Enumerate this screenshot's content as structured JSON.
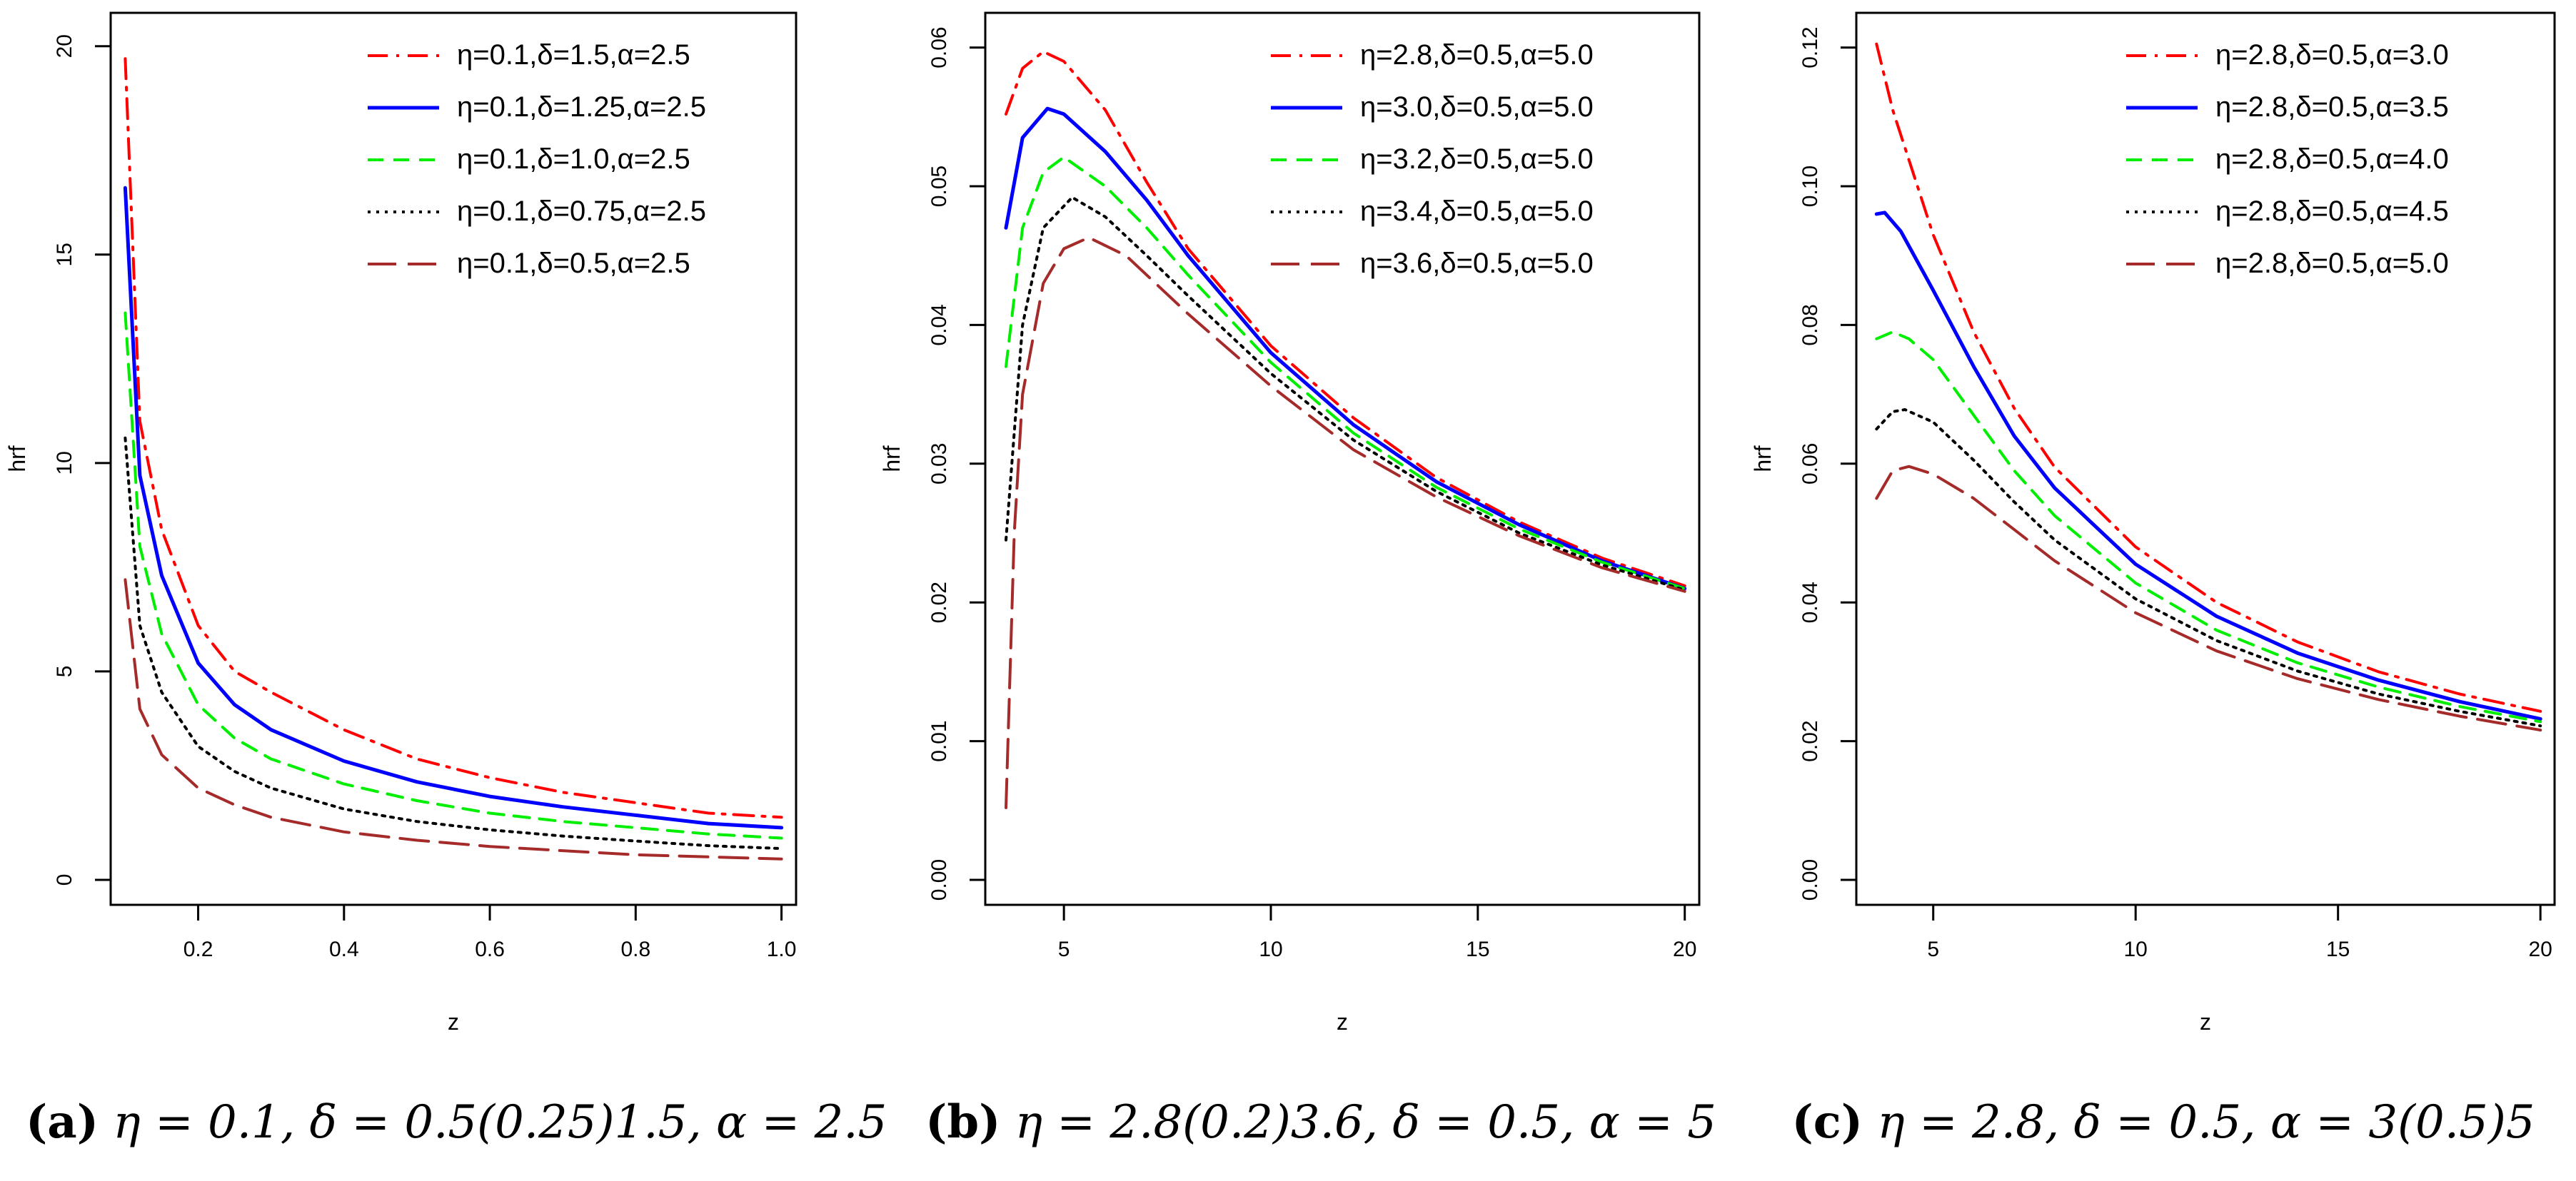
{
  "figure": {
    "captions": [
      {
        "label": "(a)",
        "text": "η = 0.1, δ = 0.5(0.25)1.5, α = 2.5"
      },
      {
        "label": "(b)",
        "text": "η = 2.8(0.2)3.6, δ = 0.5, α = 5"
      },
      {
        "label": "(c)",
        "text": "η = 2.8, δ = 0.5, α = 3(0.5)5"
      }
    ]
  },
  "styles": {
    "colors": [
      "#ff0000",
      "#0000ff",
      "#00ee00",
      "#000000",
      "#a52a2a"
    ],
    "dashes": [
      "28 12 4 12",
      "",
      "22 14",
      "4 8",
      "40 16"
    ]
  },
  "chart_data": [
    {
      "type": "line",
      "title": "",
      "xlabel": "z",
      "ylabel": "hrf",
      "xlim": [
        0.1,
        1.0
      ],
      "ylim": [
        0,
        20
      ],
      "xticks": [
        0.2,
        0.4,
        0.6,
        0.8,
        1.0
      ],
      "xtick_labels": [
        "0.2",
        "0.4",
        "0.6",
        "0.8",
        "1.0"
      ],
      "yticks": [
        0,
        5,
        10,
        15,
        20
      ],
      "ytick_labels": [
        "0",
        "5",
        "10",
        "15",
        "20"
      ],
      "legend_position": "top-right",
      "x": [
        0.1,
        0.12,
        0.15,
        0.2,
        0.25,
        0.3,
        0.4,
        0.5,
        0.6,
        0.7,
        0.8,
        0.9,
        1.0
      ],
      "series": [
        {
          "name": "η=0.1,δ=1.5,α=2.5",
          "values": [
            19.7,
            11.0,
            8.4,
            6.1,
            5.0,
            4.5,
            3.6,
            2.9,
            2.45,
            2.1,
            1.85,
            1.6,
            1.5
          ]
        },
        {
          "name": "η=0.1,δ=1.25,α=2.5",
          "values": [
            16.6,
            9.7,
            7.3,
            5.2,
            4.2,
            3.6,
            2.85,
            2.35,
            2.0,
            1.75,
            1.55,
            1.35,
            1.25
          ]
        },
        {
          "name": "η=0.1,δ=1.0,α=2.5",
          "values": [
            13.6,
            8.0,
            5.9,
            4.2,
            3.4,
            2.9,
            2.3,
            1.9,
            1.6,
            1.4,
            1.25,
            1.1,
            1.0
          ]
        },
        {
          "name": "η=0.1,δ=0.75,α=2.5",
          "values": [
            10.6,
            6.1,
            4.5,
            3.2,
            2.6,
            2.2,
            1.7,
            1.4,
            1.2,
            1.05,
            0.93,
            0.82,
            0.75
          ]
        },
        {
          "name": "η=0.1,δ=0.5,α=2.5",
          "values": [
            7.2,
            4.1,
            3.0,
            2.2,
            1.8,
            1.5,
            1.15,
            0.95,
            0.8,
            0.7,
            0.6,
            0.55,
            0.5
          ]
        }
      ]
    },
    {
      "type": "line",
      "title": "",
      "xlabel": "z",
      "ylabel": "hrf",
      "xlim": [
        3.6,
        20
      ],
      "ylim": [
        0,
        0.06
      ],
      "xticks": [
        5,
        10,
        15,
        20
      ],
      "xtick_labels": [
        "5",
        "10",
        "15",
        "20"
      ],
      "yticks": [
        0,
        0.01,
        0.02,
        0.03,
        0.04,
        0.05,
        0.06
      ],
      "ytick_labels": [
        "0.00",
        "0.01",
        "0.02",
        "0.03",
        "0.04",
        "0.05",
        "0.06"
      ],
      "legend_position": "top-right",
      "series": [
        {
          "name": "η=2.8,δ=0.5,α=5.0",
          "x": [
            3.6,
            4.0,
            4.5,
            5.0,
            6.0,
            7.0,
            8.0,
            10.0,
            12.0,
            14.0,
            16.0,
            18.0,
            20.0
          ],
          "values": [
            0.0552,
            0.0585,
            0.0597,
            0.059,
            0.0555,
            0.0503,
            0.0455,
            0.0385,
            0.0333,
            0.029,
            0.0258,
            0.0232,
            0.0212
          ]
        },
        {
          "name": "η=3.0,δ=0.5,α=5.0",
          "x": [
            3.6,
            4.0,
            4.6,
            5.0,
            6.0,
            7.0,
            8.0,
            10.0,
            12.0,
            14.0,
            16.0,
            18.0,
            20.0
          ],
          "values": [
            0.047,
            0.0535,
            0.0556,
            0.0552,
            0.0525,
            0.049,
            0.045,
            0.038,
            0.0328,
            0.0287,
            0.0256,
            0.023,
            0.021
          ]
        },
        {
          "name": "η=3.2,δ=0.5,α=5.0",
          "x": [
            3.6,
            4.0,
            4.5,
            5.0,
            6.0,
            7.0,
            8.0,
            10.0,
            12.0,
            14.0,
            16.0,
            18.0,
            20.0
          ],
          "values": [
            0.037,
            0.047,
            0.051,
            0.0521,
            0.05,
            0.047,
            0.0436,
            0.0373,
            0.0322,
            0.0283,
            0.0253,
            0.0229,
            0.021
          ]
        },
        {
          "name": "η=3.4,δ=0.5,α=5.0",
          "x": [
            3.6,
            4.0,
            4.5,
            5.2,
            6.0,
            7.0,
            8.0,
            10.0,
            12.0,
            14.0,
            16.0,
            18.0,
            20.0
          ],
          "values": [
            0.0245,
            0.04,
            0.047,
            0.0492,
            0.0478,
            0.045,
            0.0421,
            0.0365,
            0.0317,
            0.028,
            0.025,
            0.0227,
            0.0209
          ]
        },
        {
          "name": "η=3.6,δ=0.5,α=5.0",
          "x": [
            3.6,
            3.8,
            4.0,
            4.5,
            5.0,
            5.6,
            6.5,
            8.0,
            10.0,
            12.0,
            14.0,
            16.0,
            18.0,
            20.0
          ],
          "values": [
            0.0052,
            0.025,
            0.035,
            0.043,
            0.0455,
            0.0463,
            0.045,
            0.0408,
            0.0356,
            0.031,
            0.0276,
            0.0248,
            0.0225,
            0.0208
          ]
        }
      ]
    },
    {
      "type": "line",
      "title": "",
      "xlabel": "z",
      "ylabel": "hrf",
      "xlim": [
        3.6,
        20
      ],
      "ylim": [
        0,
        0.12
      ],
      "xticks": [
        5,
        10,
        15,
        20
      ],
      "xtick_labels": [
        "5",
        "10",
        "15",
        "20"
      ],
      "yticks": [
        0,
        0.02,
        0.04,
        0.06,
        0.08,
        0.1,
        0.12
      ],
      "ytick_labels": [
        "0.00",
        "0.02",
        "0.04",
        "0.06",
        "0.08",
        "0.10",
        "0.12"
      ],
      "legend_position": "top-right",
      "series": [
        {
          "name": "η=2.8,δ=0.5,α=3.0",
          "x": [
            3.6,
            4.0,
            5.0,
            6.0,
            7.0,
            8.0,
            10.0,
            12.0,
            14.0,
            16.0,
            18.0,
            20.0
          ],
          "values": [
            0.1205,
            0.111,
            0.093,
            0.079,
            0.068,
            0.0595,
            0.048,
            0.04,
            0.0343,
            0.03,
            0.0268,
            0.0243
          ]
        },
        {
          "name": "η=2.8,δ=0.5,α=3.5",
          "x": [
            3.6,
            3.8,
            4.2,
            5.0,
            6.0,
            7.0,
            8.0,
            10.0,
            12.0,
            14.0,
            16.0,
            18.0,
            20.0
          ],
          "values": [
            0.096,
            0.0962,
            0.0935,
            0.085,
            0.074,
            0.064,
            0.0565,
            0.0455,
            0.038,
            0.0327,
            0.0288,
            0.0257,
            0.0232
          ]
        },
        {
          "name": "η=2.8,δ=0.5,α=4.0",
          "x": [
            3.6,
            4.0,
            4.4,
            5.0,
            6.0,
            7.0,
            8.0,
            10.0,
            12.0,
            14.0,
            16.0,
            18.0,
            20.0
          ],
          "values": [
            0.078,
            0.079,
            0.078,
            0.075,
            0.067,
            0.059,
            0.0525,
            0.0428,
            0.036,
            0.0313,
            0.0278,
            0.025,
            0.0228
          ]
        },
        {
          "name": "η=2.8,δ=0.5,α=4.5",
          "x": [
            3.6,
            4.0,
            4.3,
            5.0,
            6.0,
            7.0,
            8.0,
            10.0,
            12.0,
            14.0,
            16.0,
            18.0,
            20.0
          ],
          "values": [
            0.065,
            0.0675,
            0.0678,
            0.066,
            0.0605,
            0.0545,
            0.049,
            0.0405,
            0.0345,
            0.0301,
            0.0268,
            0.0243,
            0.0222
          ]
        },
        {
          "name": "η=2.8,δ=0.5,α=5.0",
          "x": [
            3.6,
            4.0,
            4.4,
            5.0,
            6.0,
            7.0,
            8.0,
            10.0,
            12.0,
            14.0,
            16.0,
            18.0,
            20.0
          ],
          "values": [
            0.055,
            0.059,
            0.0596,
            0.0585,
            0.055,
            0.0505,
            0.046,
            0.0385,
            0.033,
            0.029,
            0.026,
            0.0236,
            0.0216
          ]
        }
      ]
    }
  ]
}
